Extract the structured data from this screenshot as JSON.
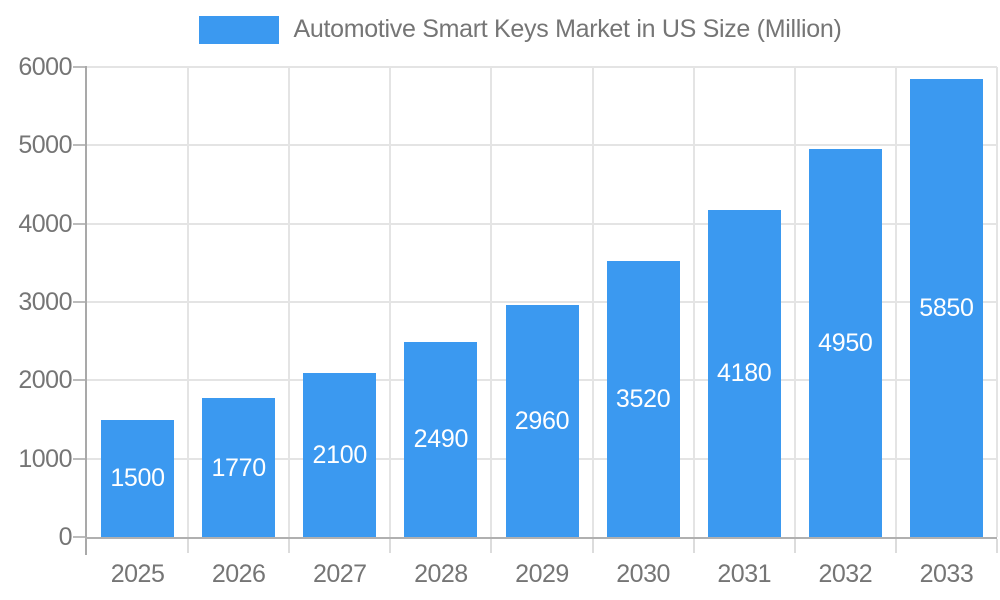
{
  "legend": {
    "label": "Automotive Smart Keys Market in US Size (Million)"
  },
  "chart_data": {
    "type": "bar",
    "title": "Automotive Smart Keys Market in US Size (Million)",
    "categories": [
      "2025",
      "2026",
      "2027",
      "2028",
      "2029",
      "2030",
      "2031",
      "2032",
      "2033"
    ],
    "values": [
      1500,
      1770,
      2100,
      2490,
      2960,
      3520,
      4180,
      4950,
      5850
    ],
    "xlabel": "",
    "ylabel": "",
    "ylim": [
      0,
      6000
    ],
    "yticks": [
      0,
      1000,
      2000,
      3000,
      4000,
      5000,
      6000
    ],
    "grid": true,
    "legend_position": "top",
    "bar_color": "#3b99f0",
    "value_label_color": "#ffffff",
    "axis_text_color": "#757575"
  }
}
